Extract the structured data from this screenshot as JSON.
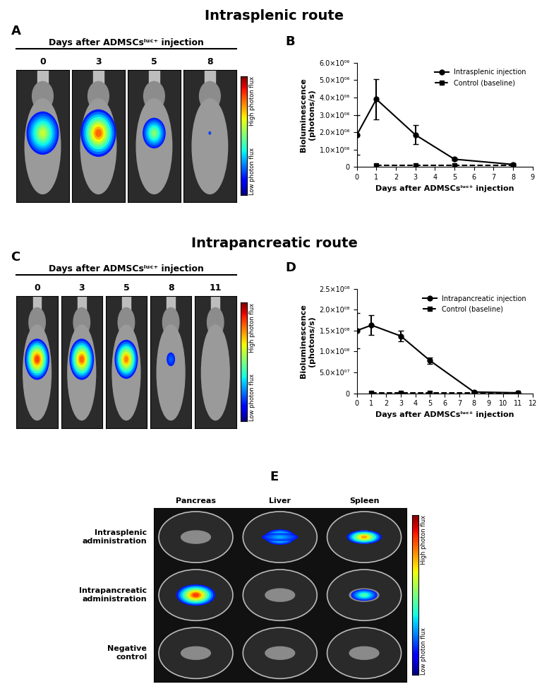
{
  "panels": {
    "intrasplenic": {
      "title": "Intrasplenic route",
      "letter": "A",
      "header": "Days after ADMSCsˡᵘᶜ⁺ injection",
      "days": [
        "0",
        "3",
        "5",
        "8"
      ],
      "scale_high": "High photon flux",
      "scale_low": "Low photon flux"
    },
    "intrapancreatic": {
      "title": "Intrapancreatic route",
      "letter": "C",
      "header": "Days after ADMSCsˡᵘᶜ⁺ injection",
      "days": [
        "0",
        "3",
        "5",
        "8",
        "11"
      ],
      "scale_high": "High photon flux",
      "scale_low": "Low photon flux"
    },
    "organs": {
      "letter": "E",
      "columns": [
        "Pancreas",
        "Liver",
        "Spleen"
      ],
      "rows": [
        "Intrasplenic\nadministration",
        "Intrapancreatic\nadministration",
        "Negative\ncontrol"
      ],
      "scale_high": "High photon flux",
      "scale_low": "Low photon flux"
    }
  },
  "chart_data": [
    {
      "panel": "B",
      "type": "line",
      "x_label": "Days after ADMSCsˡᵘᶜ⁺ injection",
      "y_label": "Bioluminescence\n(photons/s)",
      "legend": "upper right",
      "xlim": [
        0,
        9
      ],
      "xticks": [
        0,
        1,
        2,
        3,
        4,
        5,
        6,
        7,
        8,
        9
      ],
      "ylim": [
        0,
        6000000
      ],
      "yticks": [
        0,
        {
          "value": 1000000,
          "label": "1.0×10⁰⁶"
        },
        {
          "value": 2000000,
          "label": "2.0×10⁰⁶"
        },
        {
          "value": 3000000,
          "label": "3.0×10⁰⁶"
        },
        {
          "value": 4000000,
          "label": "4.0×10⁰⁶"
        },
        {
          "value": 5000000,
          "label": "5.0×10⁰⁶"
        },
        {
          "value": 6000000,
          "label": "6.0×10⁰⁶"
        }
      ],
      "series": [
        {
          "name": "Intrasplenic injection",
          "color": "#000000",
          "marker": "circle",
          "line_style": "solid",
          "x": [
            0,
            1,
            3,
            5,
            8
          ],
          "values": [
            1850000,
            3900000,
            1850000,
            450000,
            150000
          ],
          "errors": [
            1150000,
            1150000,
            550000,
            50000,
            50000
          ]
        },
        {
          "name": "Control (baseline)",
          "color": "#000000",
          "marker": "square",
          "line_style": "dashed",
          "x": [
            1,
            3,
            5,
            8
          ],
          "values": [
            100000,
            100000,
            100000,
            100000
          ]
        }
      ]
    },
    {
      "panel": "D",
      "type": "line",
      "x_label": "Days after ADMSCsˡᵘᶜ⁺ injection",
      "y_label": "Bioluminescence\n(photons/s)",
      "legend": "upper right",
      "xlim": [
        0,
        12
      ],
      "xticks": [
        0,
        1,
        2,
        3,
        4,
        5,
        6,
        7,
        8,
        9,
        10,
        11,
        12
      ],
      "ylim": [
        0,
        250000000
      ],
      "yticks": [
        0,
        {
          "value": 50000000,
          "label": "5.0×10⁰⁷"
        },
        {
          "value": 100000000,
          "label": "1.0×10⁰⁸"
        },
        {
          "value": 150000000,
          "label": "1.5×10⁰⁸"
        },
        {
          "value": 200000000,
          "label": "2.0×10⁰⁸"
        },
        {
          "value": 250000000,
          "label": "2.5×10⁰⁸"
        }
      ],
      "series": [
        {
          "name": "Intrapancreatic injection",
          "color": "#000000",
          "marker": "circle",
          "line_style": "solid",
          "x": [
            0,
            1,
            3,
            5,
            8,
            11
          ],
          "values": [
            150000000,
            163000000,
            137000000,
            78000000,
            3000000,
            1000000
          ],
          "errors": [
            42000000,
            24000000,
            13000000,
            7000000,
            1000000,
            500000
          ]
        },
        {
          "name": "Control (baseline)",
          "color": "#000000",
          "marker": "square",
          "line_style": "dashed",
          "x": [
            1,
            3,
            5,
            8,
            11
          ],
          "values": [
            1000000,
            1000000,
            1000000,
            1000000,
            1000000
          ]
        }
      ]
    }
  ]
}
